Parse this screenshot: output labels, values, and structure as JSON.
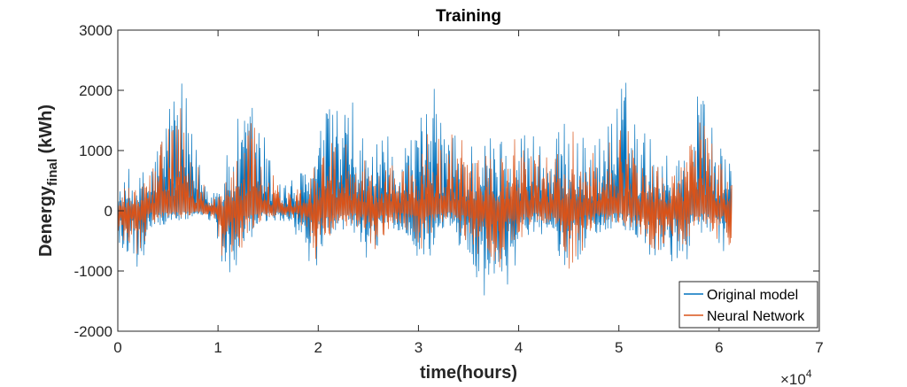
{
  "chart_data": {
    "type": "line",
    "title": "Training",
    "xlabel": "time(hours)",
    "ylabel_main": "Denergy",
    "ylabel_sub": "final",
    "ylabel_unit": " (kWh)",
    "xlim": [
      0,
      70000
    ],
    "ylim": [
      -2000,
      3000
    ],
    "x_ticks": [
      0,
      10000,
      20000,
      30000,
      40000,
      50000,
      60000,
      70000
    ],
    "x_tick_labels": [
      "0",
      "1",
      "2",
      "3",
      "4",
      "5",
      "6",
      "7"
    ],
    "y_ticks": [
      -2000,
      -1000,
      0,
      1000,
      2000,
      3000
    ],
    "y_tick_labels": [
      "-2000",
      "-1000",
      "0",
      "1000",
      "2000",
      "3000"
    ],
    "x_multiplier_base": "×10",
    "x_multiplier_exp": "4",
    "legend_position": "bottom-right",
    "series": [
      {
        "name": "Original model",
        "color": "#0072BD",
        "x_end": 61300,
        "envelope": {
          "x": [
            0,
            1000,
            2000,
            2500,
            3000,
            4000,
            5500,
            7000,
            8000,
            9500,
            10500,
            12000,
            13500,
            14500,
            15500,
            17000,
            18500,
            19500,
            20500,
            22000,
            23500,
            24500,
            25500,
            27500,
            28500,
            30000,
            31500,
            33000,
            35500,
            37500,
            39500,
            41000,
            43500,
            45000,
            46000,
            47500,
            49500,
            50500,
            52000,
            53500,
            55000,
            56000,
            57500,
            58500,
            59500,
            60500,
            61300
          ],
          "upper": [
            300,
            600,
            500,
            700,
            800,
            1200,
            2200,
            1500,
            1000,
            400,
            600,
            1300,
            2000,
            1400,
            700,
            500,
            700,
            900,
            1600,
            2000,
            1500,
            1300,
            900,
            1100,
            1200,
            1500,
            2100,
            1400,
            1200,
            1300,
            1300,
            1500,
            1200,
            1600,
            1300,
            1100,
            1800,
            2300,
            1400,
            1300,
            900,
            1000,
            1800,
            2500,
            1400,
            900,
            800
          ],
          "lower": [
            -1000,
            -700,
            -1000,
            -1200,
            -300,
            -300,
            -200,
            -150,
            -100,
            -200,
            -1300,
            -900,
            -600,
            -200,
            -200,
            -200,
            -500,
            -1400,
            -900,
            -300,
            -400,
            -600,
            -900,
            -300,
            -400,
            -900,
            -600,
            -200,
            -1200,
            -1300,
            -1000,
            -400,
            -300,
            -1300,
            -900,
            -400,
            -300,
            -400,
            -600,
            -900,
            -800,
            -1100,
            -400,
            -300,
            -700,
            -900,
            -800
          ]
        }
      },
      {
        "name": "Neural Network",
        "color": "#D95319",
        "x_end": 61300,
        "envelope": {
          "x": [
            0,
            1000,
            2000,
            2500,
            3000,
            4000,
            5500,
            7000,
            8000,
            9500,
            10500,
            12000,
            13500,
            14500,
            15500,
            17000,
            18500,
            19500,
            20500,
            22000,
            23500,
            24500,
            25500,
            27500,
            28500,
            30000,
            31500,
            33000,
            35500,
            37500,
            39500,
            41000,
            43500,
            45000,
            46000,
            47500,
            49500,
            50500,
            52000,
            53500,
            55000,
            56000,
            57500,
            58500,
            59500,
            60500,
            61300
          ],
          "upper": [
            150,
            400,
            350,
            500,
            600,
            1000,
            1700,
            1200,
            800,
            250,
            400,
            1000,
            1600,
            1100,
            500,
            350,
            500,
            700,
            1200,
            1500,
            1100,
            1000,
            700,
            800,
            900,
            1100,
            1500,
            1100,
            900,
            1000,
            1000,
            1100,
            900,
            1200,
            1000,
            800,
            1300,
            1600,
            1000,
            950,
            700,
            750,
            1300,
            1800,
            1000,
            700,
            600
          ],
          "lower": [
            -800,
            -500,
            -800,
            -900,
            -200,
            -200,
            -100,
            -100,
            -50,
            -100,
            -900,
            -700,
            -400,
            -100,
            -100,
            -100,
            -300,
            -1100,
            -700,
            -200,
            -250,
            -400,
            -700,
            -200,
            -250,
            -600,
            -400,
            -100,
            -700,
            -900,
            -700,
            -250,
            -200,
            -1000,
            -700,
            -250,
            -200,
            -250,
            -400,
            -700,
            -600,
            -900,
            -300,
            -200,
            -500,
            -600,
            -600
          ]
        }
      }
    ]
  }
}
